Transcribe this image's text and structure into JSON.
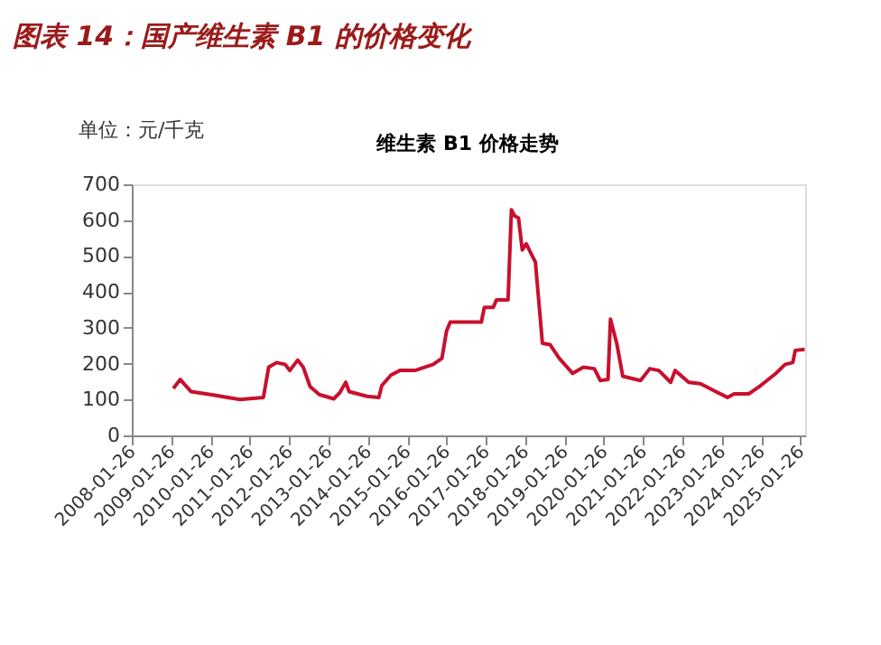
{
  "chart_data": {
    "type": "line",
    "title": "图表 14：国产维生素 B1 的价格变化",
    "subtitle": "维生素 B1 价格走势",
    "ylabel": "单位：元/千克",
    "x": [
      "2009-02-15",
      "2009-04-20",
      "2009-07-30",
      "2010-01-26",
      "2010-10-26",
      "2011-06-01",
      "2011-07-20",
      "2011-10-01",
      "2011-12-20",
      "2012-02-01",
      "2012-04-15",
      "2012-06-05",
      "2012-08-08",
      "2012-11-01",
      "2013-03-15",
      "2013-05-10",
      "2013-07-05",
      "2013-08-05",
      "2014-01-20",
      "2014-05-08",
      "2014-06-05",
      "2014-08-28",
      "2014-11-20",
      "2015-04-08",
      "2015-09-25",
      "2015-12-15",
      "2016-01-26",
      "2016-03-01",
      "2016-12-15",
      "2017-01-12",
      "2017-04-05",
      "2017-05-05",
      "2017-08-20",
      "2017-09-20",
      "2017-10-20",
      "2017-11-25",
      "2017-12-30",
      "2018-02-05",
      "2018-03-18",
      "2018-05-01",
      "2018-07-05",
      "2018-09-15",
      "2018-12-08",
      "2019-04-12",
      "2019-07-20",
      "2019-10-30",
      "2019-12-25",
      "2020-03-05",
      "2020-03-28",
      "2020-05-25",
      "2020-07-20",
      "2021-01-01",
      "2021-03-28",
      "2021-06-20",
      "2021-10-08",
      "2021-11-18",
      "2022-03-25",
      "2022-07-12",
      "2022-12-01",
      "2023-03-20",
      "2023-05-20",
      "2023-10-05",
      "2024-01-22",
      "2024-06-12",
      "2024-09-05",
      "2024-11-15",
      "2024-12-08",
      "2025-03-05"
    ],
    "series": [
      {
        "color": "#c8102e",
        "values": [
          131,
          156,
          122,
          114,
          100,
          106,
          190,
          203,
          198,
          181,
          210,
          190,
          136,
          114,
          102,
          119,
          148,
          122,
          109,
          106,
          139,
          168,
          181,
          181,
          198,
          215,
          290,
          316,
          316,
          357,
          357,
          378,
          378,
          629,
          612,
          606,
          517,
          534,
          509,
          483,
          257,
          253,
          215,
          173,
          190,
          186,
          153,
          156,
          324,
          257,
          165,
          153,
          186,
          181,
          148,
          181,
          148,
          144,
          122,
          106,
          116,
          116,
          139,
          173,
          198,
          203,
          237,
          240
        ]
      }
    ],
    "xlim": [
      "2008-01-26",
      "2025-03-10"
    ],
    "xticks": [
      "2008-01-26",
      "2009-01-26",
      "2010-01-26",
      "2011-01-26",
      "2012-01-26",
      "2013-01-26",
      "2014-01-26",
      "2015-01-26",
      "2016-01-26",
      "2017-01-26",
      "2018-01-26",
      "2019-01-26",
      "2020-01-26",
      "2021-01-26",
      "2022-01-26",
      "2023-01-26",
      "2024-01-26",
      "2025-01-26"
    ],
    "ylim": [
      0,
      700
    ],
    "yticks": [
      0,
      100,
      200,
      300,
      400,
      500,
      600,
      700
    ],
    "grid": false
  }
}
